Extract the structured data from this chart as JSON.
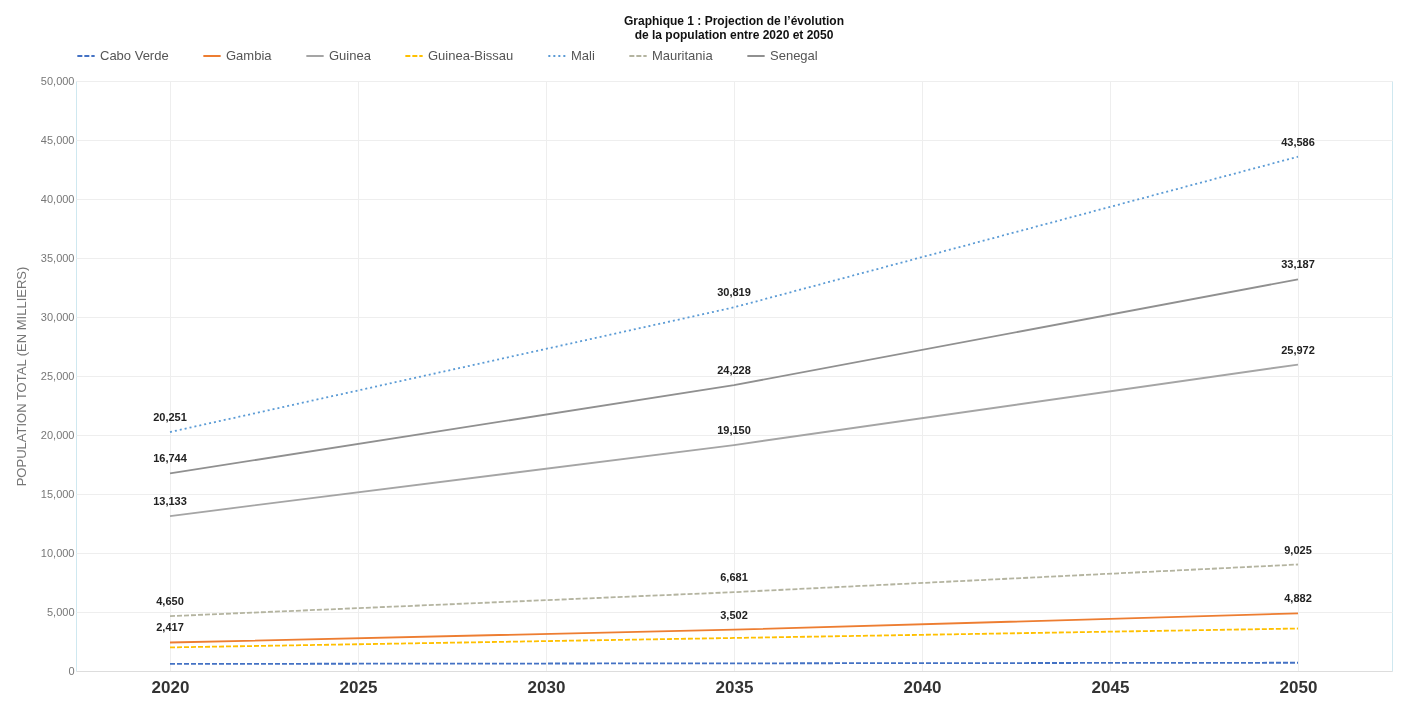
{
  "chart_data": {
    "type": "line",
    "title": "Graphique 1 : Projection de l’évolution\nde la population entre 2020 et 2050",
    "ylabel": "POPULATION TOTAL (EN MILLIERS)",
    "x": [
      2020,
      2035,
      2050
    ],
    "xlim": [
      2017.5,
      2052.5
    ],
    "xticks": [
      2020,
      2025,
      2030,
      2035,
      2040,
      2045,
      2050
    ],
    "ylim": [
      0,
      50000
    ],
    "yticks": [
      0,
      {
        "value": 5000,
        "label": "5,000"
      },
      {
        "value": 10000,
        "label": "10,000"
      },
      {
        "value": 15000,
        "label": "15,000"
      },
      {
        "value": 20000,
        "label": "20,000"
      },
      {
        "value": 25000,
        "label": "25,000"
      },
      {
        "value": 30000,
        "label": "30,000"
      },
      {
        "value": 35000,
        "label": "35,000"
      },
      {
        "value": 40000,
        "label": "40,000"
      },
      {
        "value": 45000,
        "label": "45,000"
      },
      {
        "value": 50000,
        "label": "50,000"
      }
    ],
    "grid": true,
    "legend": "top",
    "marker": "none",
    "series": [
      {
        "name": "Cabo Verde",
        "color": "#4472c4",
        "line_style": "dashed",
        "values": [
          600,
          650,
          700
        ]
      },
      {
        "name": "Gambia",
        "color": "#ed7d31",
        "line_style": "solid",
        "values": [
          2417,
          3502,
          4882
        ],
        "value_labels": [
          "2,417",
          "3,502",
          "4,882"
        ]
      },
      {
        "name": "Guinea",
        "color": "#a5a5a5",
        "line_style": "solid",
        "values": [
          13133,
          19150,
          25972
        ],
        "value_labels": [
          "13,133",
          "19,150",
          "25,972"
        ]
      },
      {
        "name": "Guinea-Bissau",
        "color": "#ffc000",
        "line_style": "dashed",
        "values": [
          2000,
          2800,
          3600
        ]
      },
      {
        "name": "Mali",
        "color": "#5b9bd5",
        "line_style": "dotted",
        "values": [
          20251,
          30819,
          43586
        ],
        "value_labels": [
          "20,251",
          "30,819",
          "43,586"
        ]
      },
      {
        "name": "Mauritania",
        "color": "#b4b4a0",
        "line_style": "dashed",
        "values": [
          4650,
          6681,
          9025
        ],
        "value_labels": [
          "4,650",
          "6,681",
          "9,025"
        ]
      },
      {
        "name": "Senegal",
        "color": "#909090",
        "line_style": "solid",
        "values": [
          16744,
          24228,
          33187
        ],
        "value_labels": [
          "16,744",
          "24,228",
          "33,187"
        ]
      }
    ]
  }
}
